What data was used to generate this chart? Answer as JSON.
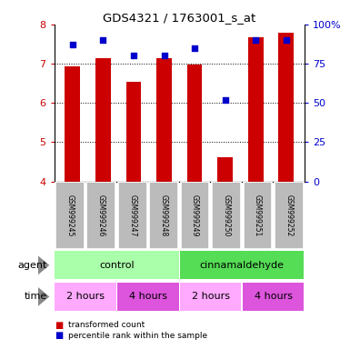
{
  "title": "GDS4321 / 1763001_s_at",
  "samples": [
    "GSM999245",
    "GSM999246",
    "GSM999247",
    "GSM999248",
    "GSM999249",
    "GSM999250",
    "GSM999251",
    "GSM999252"
  ],
  "bar_values": [
    6.93,
    7.13,
    6.55,
    7.13,
    6.97,
    4.62,
    7.68,
    7.78
  ],
  "dot_values": [
    87,
    90,
    80,
    80,
    85,
    52,
    90,
    90
  ],
  "ylim_left": [
    4,
    8
  ],
  "ylim_right": [
    0,
    100
  ],
  "yticks_left": [
    4,
    5,
    6,
    7,
    8
  ],
  "yticks_right": [
    0,
    25,
    50,
    75,
    100
  ],
  "bar_color": "#cc0000",
  "dot_color": "#0000cc",
  "agent_labels": [
    [
      "control",
      0,
      4
    ],
    [
      "cinnamaldehyde",
      4,
      8
    ]
  ],
  "agent_colors": [
    "#aaffaa",
    "#55dd55"
  ],
  "time_labels": [
    [
      "2 hours",
      0,
      2
    ],
    [
      "4 hours",
      2,
      4
    ],
    [
      "2 hours",
      4,
      6
    ],
    [
      "4 hours",
      6,
      8
    ]
  ],
  "time_colors": [
    "#ffaaff",
    "#dd55dd",
    "#ffaaff",
    "#dd55dd"
  ],
  "background_color": "#ffffff",
  "sample_bg_color": "#bbbbbb"
}
